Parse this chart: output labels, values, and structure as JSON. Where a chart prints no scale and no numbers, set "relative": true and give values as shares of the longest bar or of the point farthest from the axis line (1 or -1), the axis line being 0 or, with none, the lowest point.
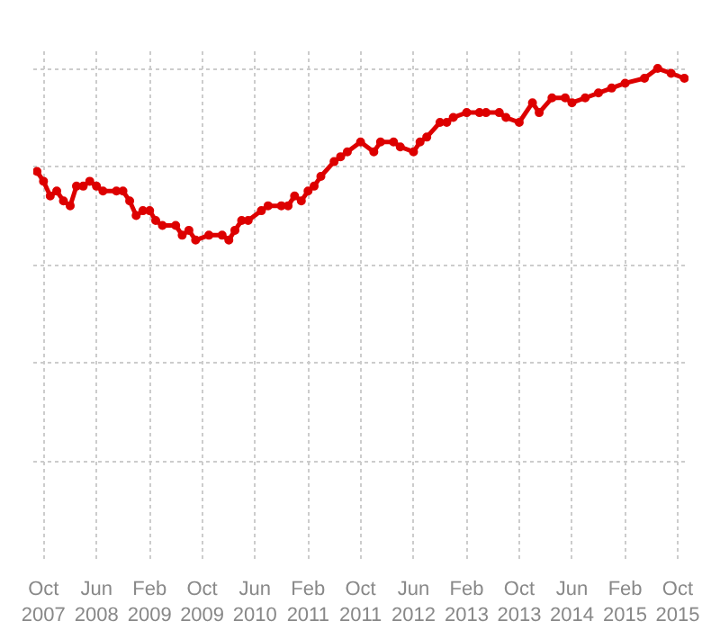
{
  "chart_data": {
    "type": "line",
    "relative": true,
    "color": "#dd0000",
    "marker": "circle",
    "line_style": "solid",
    "grid": true,
    "x": [
      "2007-09",
      "2007-10",
      "2007-11",
      "2007-12",
      "2008-01",
      "2008-02",
      "2008-03",
      "2008-04",
      "2008-05",
      "2008-06",
      "2008-07",
      "2008-09",
      "2008-10",
      "2008-11",
      "2008-12",
      "2009-01",
      "2009-02",
      "2009-03",
      "2009-04",
      "2009-06",
      "2009-07",
      "2009-08",
      "2009-09",
      "2009-11",
      "2010-01",
      "2010-02",
      "2010-03",
      "2010-04",
      "2010-05",
      "2010-07",
      "2010-08",
      "2010-10",
      "2010-11",
      "2010-12",
      "2011-01",
      "2011-02",
      "2011-03",
      "2011-04",
      "2011-06",
      "2011-07",
      "2011-08",
      "2011-10",
      "2011-12",
      "2012-01",
      "2012-03",
      "2012-04",
      "2012-06",
      "2012-07",
      "2012-08",
      "2012-10",
      "2012-11",
      "2012-12",
      "2013-02",
      "2013-04",
      "2013-05",
      "2013-07",
      "2013-08",
      "2013-10",
      "2013-12",
      "2014-01",
      "2014-03",
      "2014-05",
      "2014-06",
      "2014-08",
      "2014-10",
      "2014-12",
      "2015-02",
      "2015-05",
      "2015-07",
      "2015-09",
      "2015-11"
    ],
    "values": [
      0.79,
      0.77,
      0.74,
      0.75,
      0.73,
      0.72,
      0.76,
      0.76,
      0.77,
      0.76,
      0.75,
      0.75,
      0.75,
      0.73,
      0.7,
      0.71,
      0.71,
      0.69,
      0.68,
      0.68,
      0.66,
      0.67,
      0.65,
      0.66,
      0.66,
      0.65,
      0.67,
      0.69,
      0.69,
      0.71,
      0.72,
      0.72,
      0.72,
      0.74,
      0.73,
      0.75,
      0.76,
      0.78,
      0.81,
      0.82,
      0.83,
      0.85,
      0.83,
      0.85,
      0.85,
      0.84,
      0.83,
      0.85,
      0.86,
      0.89,
      0.89,
      0.9,
      0.91,
      0.91,
      0.91,
      0.91,
      0.9,
      0.89,
      0.93,
      0.91,
      0.94,
      0.94,
      0.93,
      0.94,
      0.95,
      0.96,
      0.97,
      0.98,
      1.0,
      0.99,
      0.98
    ],
    "xlim": [
      "2007-08-15",
      "2015-11-20"
    ],
    "xticks": [
      {
        "value": "2007-10",
        "label": "Oct 2007"
      },
      {
        "value": "2008-06",
        "label": "Jun 2008"
      },
      {
        "value": "2009-02",
        "label": "Feb 2009"
      },
      {
        "value": "2009-10",
        "label": "Oct 2009"
      },
      {
        "value": "2010-06",
        "label": "Jun 2010"
      },
      {
        "value": "2011-02",
        "label": "Feb 2011"
      },
      {
        "value": "2011-10",
        "label": "Oct 2011"
      },
      {
        "value": "2012-06",
        "label": "Jun 2012"
      },
      {
        "value": "2013-02",
        "label": "Feb 2013"
      },
      {
        "value": "2013-10",
        "label": "Oct 2013"
      },
      {
        "value": "2014-06",
        "label": "Jun 2014"
      },
      {
        "value": "2015-02",
        "label": "Feb 2015"
      },
      {
        "value": "2015-10",
        "label": "Oct 2015"
      }
    ]
  }
}
